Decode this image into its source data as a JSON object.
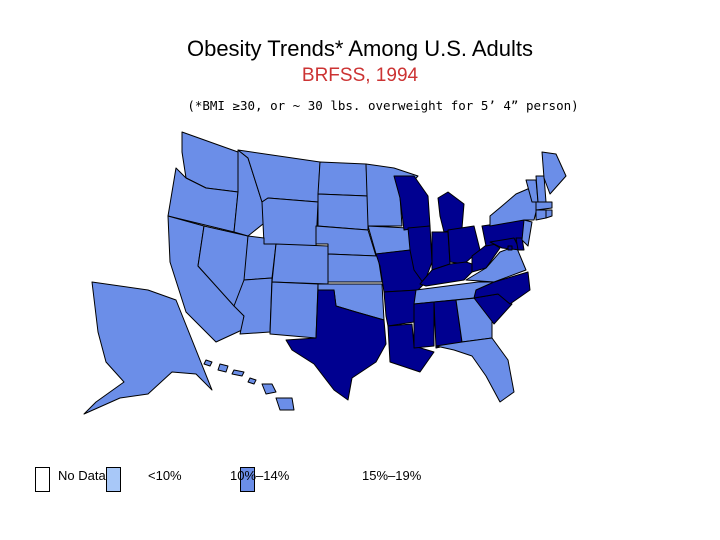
{
  "title": "Obesity Trends* Among U.S. Adults",
  "subtitle": "BRFSS, 1994",
  "note": "(*BMI ≥30, or ~ 30 lbs. overweight for 5’ 4” person)",
  "colors": {
    "no_data": "#ffffff",
    "lt10": "#a8c8f8",
    "10to14": "#6b8ee8",
    "15to19": "#000090",
    "title_accent": "#cc3333",
    "border": "#000000"
  },
  "legend": [
    {
      "label": "No Data",
      "color_key": "no_data"
    },
    {
      "label": "<10%",
      "color_key": "lt10"
    },
    {
      "label": "10%–14%",
      "color_key": "10to14"
    },
    {
      "label": "15%–19%",
      "color_key": "15to19"
    }
  ],
  "state_categories": {
    "WA": "10to14",
    "OR": "10to14",
    "CA": "10to14",
    "NV": "10to14",
    "ID": "10to14",
    "MT": "10to14",
    "WY": "10to14",
    "UT": "10to14",
    "AZ": "10to14",
    "CO": "10to14",
    "NM": "10to14",
    "ND": "10to14",
    "SD": "10to14",
    "NE": "10to14",
    "KS": "10to14",
    "OK": "10to14",
    "MN": "10to14",
    "IA": "10to14",
    "TX": "15to19",
    "MO": "15to19",
    "AR": "15to19",
    "LA": "15to19",
    "WI": "15to19",
    "IL": "15to19",
    "MI": "15to19",
    "IN": "15to19",
    "OH": "15to19",
    "KY": "15to19",
    "TN": "10to14",
    "MS": "15to19",
    "AL": "15to19",
    "GA": "10to14",
    "FL": "10to14",
    "SC": "15to19",
    "NC": "15to19",
    "VA": "10to14",
    "WV": "15to19",
    "PA": "15to19",
    "NY": "10to14",
    "VT": "10to14",
    "NH": "10to14",
    "ME": "10to14",
    "MA": "10to14",
    "RI": "10to14",
    "CT": "10to14",
    "NJ": "10to14",
    "DE": "15to19",
    "MD": "15to19",
    "DC": "15to19",
    "AK": "10to14",
    "HI": "10to14"
  }
}
